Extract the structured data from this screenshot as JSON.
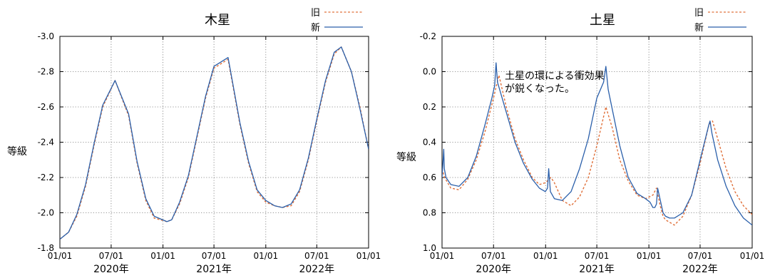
{
  "chart_data": [
    {
      "type": "line",
      "title": "木星",
      "ylabel": "等級",
      "ylim": [
        -1.8,
        -3.0
      ],
      "y_inverted": true,
      "yticks": [
        "-1.8",
        "-2.0",
        "-2.2",
        "-2.4",
        "-2.6",
        "-2.8",
        "-3.0"
      ],
      "x_ticks": [
        "01/01",
        "07/01",
        "01/01",
        "07/01",
        "01/01",
        "07/01",
        "01/01"
      ],
      "x_year_labels": [
        "2020年",
        "2021年",
        "2022年"
      ],
      "grid": true,
      "legend_position": "top-right",
      "series": [
        {
          "name": "旧",
          "style": "dashed",
          "color": "#e0703a",
          "x": [
            "2020-01-01",
            "2020-02-01",
            "2020-03-01",
            "2020-04-01",
            "2020-05-01",
            "2020-06-01",
            "2020-07-15",
            "2020-09-01",
            "2020-10-01",
            "2020-11-01",
            "2020-12-01",
            "2021-01-15",
            "2021-02-01",
            "2021-03-01",
            "2021-04-01",
            "2021-05-01",
            "2021-06-01",
            "2021-07-01",
            "2021-08-20",
            "2021-10-01",
            "2021-11-01",
            "2021-12-01",
            "2022-01-01",
            "2022-02-01",
            "2022-03-01",
            "2022-04-01",
            "2022-05-01",
            "2022-06-01",
            "2022-07-01",
            "2022-08-01",
            "2022-09-01",
            "2022-09-26",
            "2022-11-01",
            "2022-12-01",
            "2023-01-01"
          ],
          "y": [
            -1.85,
            -1.89,
            -1.98,
            -2.15,
            -2.38,
            -2.6,
            -2.75,
            -2.55,
            -2.28,
            -2.07,
            -1.97,
            -1.95,
            -1.96,
            -2.05,
            -2.2,
            -2.42,
            -2.65,
            -2.82,
            -2.87,
            -2.5,
            -2.28,
            -2.12,
            -2.06,
            -2.04,
            -2.03,
            -2.04,
            -2.12,
            -2.3,
            -2.52,
            -2.74,
            -2.9,
            -2.94,
            -2.8,
            -2.6,
            -2.36
          ]
        },
        {
          "name": "新",
          "style": "solid",
          "color": "#2a5faa",
          "x": [
            "2020-01-01",
            "2020-02-01",
            "2020-03-01",
            "2020-04-01",
            "2020-05-01",
            "2020-06-01",
            "2020-07-15",
            "2020-09-01",
            "2020-10-01",
            "2020-11-01",
            "2020-12-01",
            "2021-01-15",
            "2021-02-01",
            "2021-03-01",
            "2021-04-01",
            "2021-05-01",
            "2021-06-01",
            "2021-07-01",
            "2021-08-20",
            "2021-10-01",
            "2021-11-01",
            "2021-12-01",
            "2022-01-01",
            "2022-02-01",
            "2022-03-01",
            "2022-04-01",
            "2022-05-01",
            "2022-06-01",
            "2022-07-01",
            "2022-08-01",
            "2022-09-01",
            "2022-09-26",
            "2022-11-01",
            "2022-12-01",
            "2023-01-01"
          ],
          "y": [
            -1.85,
            -1.89,
            -1.99,
            -2.16,
            -2.39,
            -2.61,
            -2.75,
            -2.56,
            -2.29,
            -2.08,
            -1.98,
            -1.95,
            -1.96,
            -2.06,
            -2.21,
            -2.43,
            -2.66,
            -2.83,
            -2.88,
            -2.51,
            -2.29,
            -2.13,
            -2.07,
            -2.04,
            -2.03,
            -2.05,
            -2.13,
            -2.31,
            -2.53,
            -2.75,
            -2.91,
            -2.94,
            -2.8,
            -2.59,
            -2.36
          ]
        }
      ]
    },
    {
      "type": "line",
      "title": "土星",
      "ylabel": "等級",
      "ylim": [
        1.0,
        -0.2
      ],
      "y_inverted": true,
      "yticks": [
        "1.0",
        "0.8",
        "0.6",
        "0.4",
        "0.2",
        "0.0",
        "-0.2"
      ],
      "x_ticks": [
        "01/01",
        "07/01",
        "01/01",
        "07/01",
        "01/01",
        "07/01",
        "01/01"
      ],
      "x_year_labels": [
        "2020年",
        "2021年",
        "2022年"
      ],
      "grid": true,
      "legend_position": "top-right",
      "annotation": [
        "土星の環による衝効果",
        "が鋭くなった。"
      ],
      "series": [
        {
          "name": "旧",
          "style": "dashed",
          "color": "#e0703a",
          "x": [
            "2020-01-01",
            "2020-01-10",
            "2020-02-01",
            "2020-03-01",
            "2020-04-01",
            "2020-05-01",
            "2020-06-01",
            "2020-07-01",
            "2020-07-20",
            "2020-08-15",
            "2020-09-15",
            "2020-10-15",
            "2020-11-15",
            "2020-12-10",
            "2020-12-31",
            "2021-01-20",
            "2021-02-01",
            "2021-03-01",
            "2021-04-01",
            "2021-05-01",
            "2021-06-01",
            "2021-07-01",
            "2021-08-02",
            "2021-08-25",
            "2021-09-20",
            "2021-10-20",
            "2021-11-20",
            "2021-12-20",
            "2022-01-15",
            "2022-01-28",
            "2022-02-10",
            "2022-02-20",
            "2022-03-01",
            "2022-04-01",
            "2022-05-01",
            "2022-06-01",
            "2022-07-01",
            "2022-08-01",
            "2022-08-14",
            "2022-09-01",
            "2022-10-01",
            "2022-11-01",
            "2022-12-01",
            "2023-01-01"
          ],
          "y": [
            0.55,
            0.6,
            0.66,
            0.67,
            0.61,
            0.5,
            0.34,
            0.15,
            0.02,
            0.2,
            0.38,
            0.5,
            0.6,
            0.64,
            0.63,
            0.6,
            0.63,
            0.73,
            0.76,
            0.71,
            0.6,
            0.42,
            0.2,
            0.32,
            0.5,
            0.62,
            0.7,
            0.72,
            0.7,
            0.66,
            0.76,
            0.82,
            0.84,
            0.87,
            0.82,
            0.7,
            0.52,
            0.3,
            0.28,
            0.38,
            0.55,
            0.68,
            0.76,
            0.81
          ]
        },
        {
          "name": "新",
          "style": "solid",
          "color": "#2a5faa",
          "x": [
            "2020-01-01",
            "2020-01-07",
            "2020-01-09",
            "2020-01-15",
            "2020-02-01",
            "2020-03-01",
            "2020-04-01",
            "2020-05-01",
            "2020-06-01",
            "2020-06-25",
            "2020-07-05",
            "2020-07-10",
            "2020-07-15",
            "2020-08-15",
            "2020-09-15",
            "2020-10-15",
            "2020-11-15",
            "2020-12-10",
            "2020-12-31",
            "2021-01-08",
            "2021-01-12",
            "2021-01-18",
            "2021-02-01",
            "2021-03-01",
            "2021-04-01",
            "2021-05-01",
            "2021-06-01",
            "2021-07-01",
            "2021-07-25",
            "2021-08-02",
            "2021-08-10",
            "2021-09-20",
            "2021-10-20",
            "2021-11-20",
            "2021-12-20",
            "2022-01-05",
            "2022-01-15",
            "2022-01-22",
            "2022-01-28",
            "2022-02-01",
            "2022-02-20",
            "2022-03-01",
            "2022-03-15",
            "2022-04-01",
            "2022-05-01",
            "2022-06-01",
            "2022-07-01",
            "2022-08-01",
            "2022-08-05",
            "2022-08-12",
            "2022-09-01",
            "2022-10-01",
            "2022-11-01",
            "2022-12-01",
            "2023-01-01"
          ],
          "y": [
            0.6,
            0.44,
            0.55,
            0.6,
            0.64,
            0.65,
            0.6,
            0.48,
            0.3,
            0.15,
            0.08,
            -0.05,
            0.06,
            0.23,
            0.4,
            0.52,
            0.61,
            0.66,
            0.68,
            0.66,
            0.55,
            0.68,
            0.72,
            0.73,
            0.68,
            0.55,
            0.38,
            0.15,
            0.06,
            -0.03,
            0.1,
            0.42,
            0.6,
            0.69,
            0.72,
            0.74,
            0.77,
            0.77,
            0.75,
            0.66,
            0.8,
            0.82,
            0.83,
            0.83,
            0.8,
            0.7,
            0.5,
            0.3,
            0.28,
            0.35,
            0.5,
            0.65,
            0.76,
            0.83,
            0.87
          ]
        }
      ]
    }
  ]
}
